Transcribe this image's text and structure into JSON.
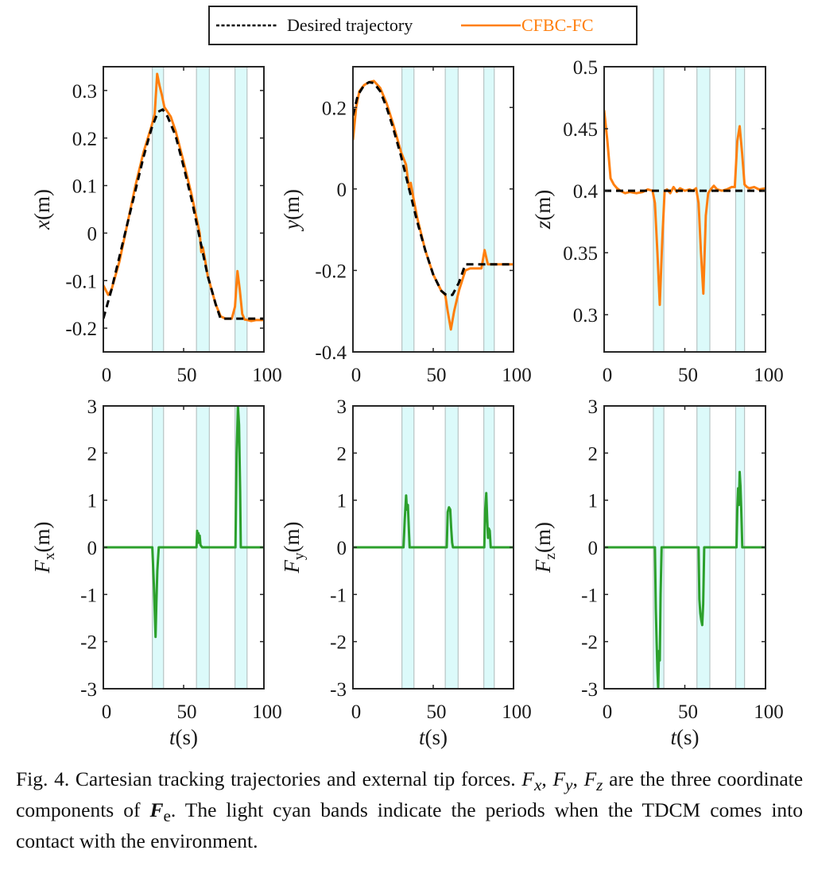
{
  "legend": {
    "items": [
      {
        "label": "Desired trajectory",
        "color": "#000000",
        "style": "dashed"
      },
      {
        "label": "CFBC-FC",
        "color": "#ff7f0e",
        "style": "solid"
      }
    ]
  },
  "colors": {
    "desired": "#000000",
    "measured": "#ff7f0e",
    "force": "#2ca02c",
    "band_fill": "#dcfafa",
    "band_edge": "#b8c4c4"
  },
  "caption": {
    "prefix": "Fig. 4. Cartesian tracking trajectories and external tip forces.",
    "fx": "F",
    "fx_sub": "x",
    "fy": "F",
    "fy_sub": "y",
    "fz": "F",
    "fz_sub": "z",
    "mid": "are the three coordinate components of",
    "fe": "F",
    "fe_sub": "e",
    "suffix": ". The light cyan bands indicate the periods when the TDCM comes into contact with the environment."
  },
  "chart_data": [
    {
      "id": "x",
      "type": "line",
      "ylabel_main": "x",
      "ylabel_unit": "(m)",
      "xlabel": "",
      "xlim": [
        0,
        100
      ],
      "ylim": [
        -0.25,
        0.35
      ],
      "xticks": [
        0,
        50,
        100
      ],
      "yticks": [
        -0.2,
        -0.1,
        0,
        0.1,
        0.2,
        0.3
      ],
      "ytick_labels": [
        "-0.2",
        "-0.1",
        "0",
        "0.1",
        "0.2",
        "0.3"
      ],
      "contact_bands": [
        [
          30.5,
          37.5
        ],
        [
          58,
          66
        ],
        [
          82,
          89.5
        ]
      ],
      "series": [
        {
          "name": "Desired trajectory",
          "style": "dashed",
          "x": [
            0,
            5,
            10,
            15,
            20,
            25,
            30,
            34,
            37,
            40,
            45,
            50,
            55,
            60,
            65,
            70,
            73,
            75,
            80,
            85,
            90,
            95,
            100
          ],
          "y": [
            -0.18,
            -0.12,
            -0.05,
            0.02,
            0.09,
            0.16,
            0.22,
            0.255,
            0.26,
            0.245,
            0.205,
            0.14,
            0.07,
            -0.01,
            -0.09,
            -0.15,
            -0.18,
            -0.18,
            -0.18,
            -0.18,
            -0.18,
            -0.18,
            -0.18
          ]
        },
        {
          "name": "CFBC-FC",
          "style": "solid",
          "x": [
            0,
            1.5,
            3,
            5,
            10,
            15,
            20,
            25,
            30,
            32,
            33.5,
            35,
            36.5,
            38,
            40,
            42,
            45,
            50,
            55,
            60,
            61,
            62,
            63,
            65,
            70,
            73,
            76,
            78,
            80,
            82,
            83.5,
            85,
            86.5,
            88,
            90,
            92,
            95,
            100
          ],
          "y": [
            -0.11,
            -0.12,
            -0.13,
            -0.12,
            -0.06,
            0.02,
            0.1,
            0.17,
            0.225,
            0.25,
            0.335,
            0.31,
            0.29,
            0.265,
            0.255,
            0.245,
            0.215,
            0.15,
            0.08,
            0.0,
            -0.04,
            -0.03,
            -0.05,
            -0.09,
            -0.15,
            -0.175,
            -0.18,
            -0.18,
            -0.18,
            -0.155,
            -0.08,
            -0.12,
            -0.17,
            -0.182,
            -0.183,
            -0.185,
            -0.183,
            -0.183
          ]
        }
      ]
    },
    {
      "id": "y",
      "type": "line",
      "ylabel_main": "y",
      "ylabel_unit": "(m)",
      "xlabel": "",
      "xlim": [
        0,
        100
      ],
      "ylim": [
        -0.4,
        0.3
      ],
      "xticks": [
        0,
        50,
        100
      ],
      "yticks": [
        -0.4,
        -0.2,
        0,
        0.2
      ],
      "ytick_labels": [
        "-0.4",
        "-0.2",
        "0",
        "0.2"
      ],
      "contact_bands": [
        [
          30.5,
          38
        ],
        [
          57.5,
          65.5
        ],
        [
          81.5,
          88
        ]
      ],
      "series": [
        {
          "name": "Desired trajectory",
          "style": "dashed",
          "x": [
            0,
            3,
            7,
            10,
            13,
            17,
            21,
            25,
            30,
            35,
            40,
            45,
            50,
            55,
            58,
            62,
            66,
            70,
            75,
            80,
            85,
            90,
            95,
            100
          ],
          "y": [
            0.18,
            0.23,
            0.255,
            0.262,
            0.26,
            0.24,
            0.2,
            0.15,
            0.08,
            0.0,
            -0.08,
            -0.15,
            -0.21,
            -0.25,
            -0.26,
            -0.26,
            -0.23,
            -0.185,
            -0.185,
            -0.185,
            -0.185,
            -0.185,
            -0.185,
            -0.185
          ]
        },
        {
          "name": "CFBC-FC",
          "style": "solid",
          "x": [
            0,
            2,
            4,
            7,
            10,
            13,
            17,
            21,
            25,
            30,
            33,
            35,
            36,
            38,
            40,
            45,
            50,
            55,
            57.5,
            59,
            61,
            63,
            66,
            70,
            73,
            76,
            80,
            82,
            84,
            86,
            90,
            95,
            100
          ],
          "y": [
            0.12,
            0.2,
            0.24,
            0.255,
            0.262,
            0.265,
            0.248,
            0.21,
            0.16,
            0.09,
            0.06,
            0.0,
            0.015,
            -0.03,
            -0.07,
            -0.15,
            -0.21,
            -0.25,
            -0.26,
            -0.3,
            -0.345,
            -0.3,
            -0.25,
            -0.2,
            -0.195,
            -0.195,
            -0.195,
            -0.15,
            -0.185,
            -0.185,
            -0.185,
            -0.185,
            -0.185
          ]
        }
      ]
    },
    {
      "id": "z",
      "type": "line",
      "ylabel_main": "z",
      "ylabel_unit": "(m)",
      "xlabel": "",
      "xlim": [
        0,
        100
      ],
      "ylim": [
        0.27,
        0.5
      ],
      "xticks": [
        0,
        50,
        100
      ],
      "yticks": [
        0.3,
        0.35,
        0.4,
        0.45,
        0.5
      ],
      "ytick_labels": [
        "0.3",
        "0.35",
        "0.4",
        "0.45",
        "0.5"
      ],
      "contact_bands": [
        [
          30.5,
          37
        ],
        [
          57.5,
          65.5
        ],
        [
          81.5,
          87
        ]
      ],
      "series": [
        {
          "name": "Desired trajectory",
          "style": "dashed",
          "x": [
            0,
            100
          ],
          "y": [
            0.4,
            0.4
          ]
        },
        {
          "name": "CFBC-FC",
          "style": "solid",
          "x": [
            0,
            2,
            4,
            6,
            8,
            10,
            13,
            16,
            20,
            24,
            27,
            30,
            31.5,
            33,
            34.5,
            36,
            37.5,
            39,
            41,
            43,
            45,
            47,
            50,
            53,
            55,
            57,
            58.5,
            60,
            61.5,
            63,
            64.5,
            66,
            68,
            70,
            73,
            76,
            79,
            81,
            82.5,
            84,
            85.5,
            87,
            88.5,
            90,
            93,
            96,
            100
          ],
          "y": [
            0.465,
            0.44,
            0.41,
            0.405,
            0.402,
            0.4,
            0.398,
            0.399,
            0.398,
            0.399,
            0.401,
            0.4,
            0.39,
            0.35,
            0.308,
            0.36,
            0.4,
            0.401,
            0.398,
            0.403,
            0.399,
            0.402,
            0.4,
            0.401,
            0.4,
            0.402,
            0.39,
            0.35,
            0.317,
            0.38,
            0.398,
            0.401,
            0.404,
            0.401,
            0.4,
            0.401,
            0.403,
            0.403,
            0.44,
            0.452,
            0.43,
            0.405,
            0.403,
            0.402,
            0.403,
            0.401,
            0.402
          ]
        }
      ]
    },
    {
      "id": "fx",
      "type": "line",
      "ylabel_main": "F",
      "ylabel_sub": "x",
      "ylabel_unit": "(m)",
      "xlabel_main": "t",
      "xlabel_unit": "(s)",
      "xlim": [
        0,
        100
      ],
      "ylim": [
        -3,
        3
      ],
      "xticks": [
        0,
        50,
        100
      ],
      "yticks": [
        -3,
        -2,
        -1,
        0,
        1,
        2,
        3
      ],
      "ytick_labels": [
        "-3",
        "-2",
        "-1",
        "0",
        "1",
        "2",
        "3"
      ],
      "contact_bands": [
        [
          30.5,
          37.5
        ],
        [
          58,
          66
        ],
        [
          82,
          89.5
        ]
      ],
      "series": [
        {
          "name": "Fx",
          "style": "solid",
          "x": [
            0,
            30.5,
            31.5,
            32.5,
            33,
            33.6,
            34.5,
            35,
            58,
            58.4,
            58.8,
            59.2,
            59.6,
            60,
            60.5,
            61.5,
            82.3,
            83,
            83.8,
            84.5,
            85.2,
            85.6,
            100
          ],
          "y": [
            0,
            0,
            -0.8,
            -1.9,
            -1.2,
            -0.5,
            0,
            0,
            0,
            0.35,
            0.1,
            0.3,
            0.1,
            0.25,
            0.05,
            0,
            0,
            2.0,
            3.0,
            2.6,
            1.2,
            0,
            0
          ]
        }
      ]
    },
    {
      "id": "fy",
      "type": "line",
      "ylabel_main": "F",
      "ylabel_sub": "y",
      "ylabel_unit": "(m)",
      "xlabel_main": "t",
      "xlabel_unit": "(s)",
      "xlim": [
        0,
        100
      ],
      "ylim": [
        -3,
        3
      ],
      "xticks": [
        0,
        50,
        100
      ],
      "yticks": [
        -3,
        -2,
        -1,
        0,
        1,
        2,
        3
      ],
      "ytick_labels": [
        "-3",
        "-2",
        "-1",
        "0",
        "1",
        "2",
        "3"
      ],
      "contact_bands": [
        [
          30.5,
          38
        ],
        [
          57.5,
          65.5
        ],
        [
          81.5,
          88
        ]
      ],
      "series": [
        {
          "name": "Fy",
          "style": "solid",
          "x": [
            0,
            31.5,
            32.3,
            33.1,
            33.6,
            34.2,
            34.8,
            35.3,
            58.4,
            59,
            59.8,
            60.6,
            61.2,
            61.8,
            62.3,
            81.8,
            82.4,
            83,
            83.6,
            84.1,
            84.6,
            85.2,
            85.8,
            100
          ],
          "y": [
            0,
            0,
            0.6,
            1.1,
            0.8,
            0.9,
            0.4,
            0,
            0,
            0.75,
            0.85,
            0.8,
            0.4,
            0.1,
            0,
            0,
            0.8,
            1.15,
            0.6,
            0.2,
            0.4,
            0.35,
            0,
            0
          ]
        }
      ]
    },
    {
      "id": "fz",
      "type": "line",
      "ylabel_main": "F",
      "ylabel_sub": "z",
      "ylabel_unit": "(m)",
      "xlabel_main": "t",
      "xlabel_unit": "(s)",
      "xlim": [
        0,
        100
      ],
      "ylim": [
        -3,
        3
      ],
      "xticks": [
        0,
        50,
        100
      ],
      "yticks": [
        -3,
        -2,
        -1,
        0,
        1,
        2,
        3
      ],
      "ytick_labels": [
        "-3",
        "-2",
        "-1",
        "0",
        "1",
        "2",
        "3"
      ],
      "contact_bands": [
        [
          30.5,
          37
        ],
        [
          57.5,
          65.5
        ],
        [
          81.5,
          87
        ]
      ],
      "series": [
        {
          "name": "Fz",
          "style": "solid",
          "x": [
            0,
            31.5,
            32,
            32.5,
            33,
            33.5,
            34,
            34.5,
            35,
            35.6,
            58.5,
            59,
            59.6,
            60.2,
            60.8,
            61.4,
            62,
            82,
            82.5,
            83,
            83.5,
            84,
            84.5,
            85,
            85.6,
            100
          ],
          "y": [
            0,
            0,
            -1.3,
            -2.0,
            -2.6,
            -3.0,
            -2.2,
            -2.4,
            -1.0,
            0,
            0,
            -1.1,
            -1.4,
            -1.55,
            -1.65,
            -1.2,
            0,
            0,
            0.8,
            1.25,
            0.9,
            1.6,
            1.3,
            0.8,
            0,
            0
          ]
        }
      ]
    }
  ]
}
